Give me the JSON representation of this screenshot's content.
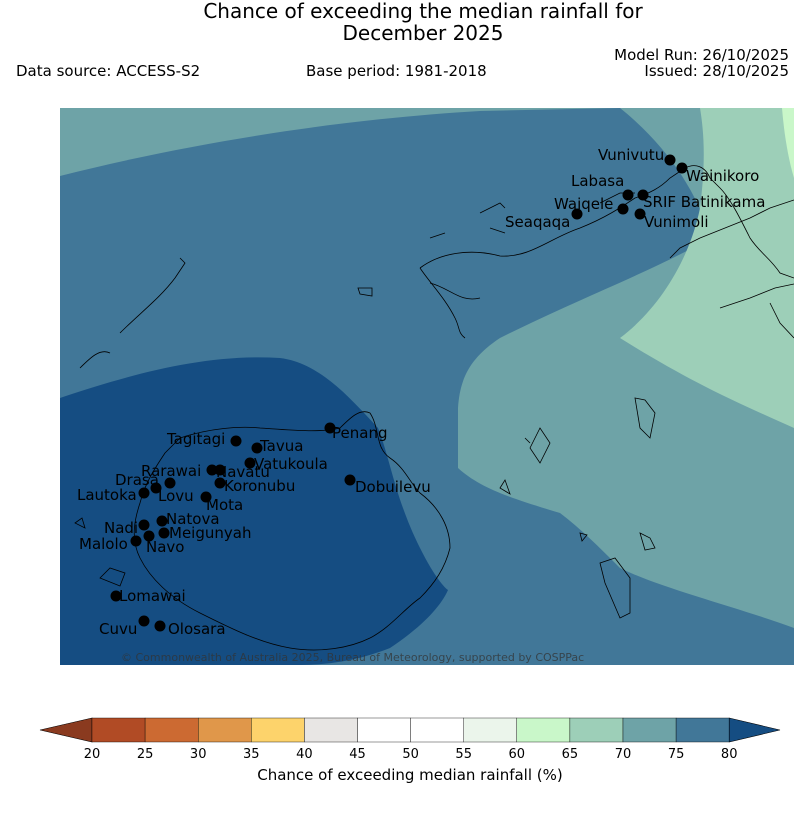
{
  "header": {
    "title_line1": "Chance of exceeding the median rainfall for",
    "title_line2": "December 2025",
    "data_source": "Data source: ACCESS-S2",
    "base_period": "Base period: 1981-2018",
    "model_run": "Model Run: 26/10/2025",
    "issued": "Issued: 28/10/2025"
  },
  "map": {
    "copyright": "© Commonwealth of Australia 2025, Bureau of Meteorology, supported by COSPPac",
    "stations": [
      {
        "name": "Vunivutu"
      },
      {
        "name": "Wainikoro"
      },
      {
        "name": "Labasa"
      },
      {
        "name": "SRIF Batinikama"
      },
      {
        "name": "Waiqele"
      },
      {
        "name": "Seaqaqa"
      },
      {
        "name": "Vunimoli"
      },
      {
        "name": "Tagitagi"
      },
      {
        "name": "Penang"
      },
      {
        "name": "Tavua"
      },
      {
        "name": "Vatukoula"
      },
      {
        "name": "Rarawai"
      },
      {
        "name": "Navatu"
      },
      {
        "name": "Drasa"
      },
      {
        "name": "Koronubu"
      },
      {
        "name": "Lautoka"
      },
      {
        "name": "Lovu"
      },
      {
        "name": "Mota"
      },
      {
        "name": "Dobuilevu"
      },
      {
        "name": "Natova"
      },
      {
        "name": "Nadi"
      },
      {
        "name": "Meigunyah"
      },
      {
        "name": "Malolo"
      },
      {
        "name": "Navo"
      },
      {
        "name": "Lomawai"
      },
      {
        "name": "Cuvu"
      },
      {
        "name": "Olosara"
      }
    ]
  },
  "colorbar": {
    "label": "Chance of exceeding median rainfall (%)",
    "ticks": [
      "20",
      "25",
      "30",
      "35",
      "40",
      "45",
      "50",
      "55",
      "60",
      "65",
      "70",
      "75",
      "80"
    ],
    "below_color": "#8a3a1f",
    "above_color": "#154d82",
    "colors": [
      "#b14b25",
      "#cc6a32",
      "#e0974a",
      "#fdd36b",
      "#e8e6e4",
      "#ffffff",
      "#ffffff",
      "#ebf5eb",
      "#c9f7c9",
      "#9dcfb8",
      "#6ea3a7",
      "#417798"
    ]
  }
}
